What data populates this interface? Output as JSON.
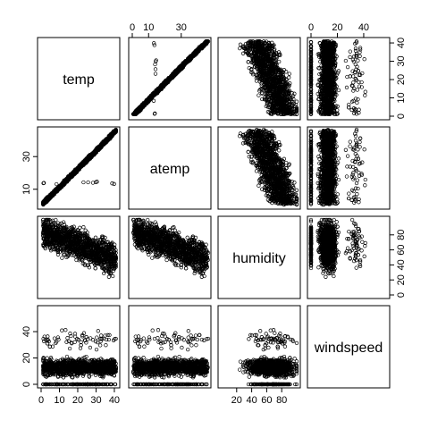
{
  "chart_data": {
    "type": "scatter",
    "title": "",
    "variables": [
      {
        "name": "temp",
        "label": "temp",
        "range": [
          0,
          41
        ],
        "ticks": [
          0,
          10,
          20,
          30,
          40
        ]
      },
      {
        "name": "atemp",
        "label": "atemp",
        "range": [
          0,
          46
        ],
        "ticks": [
          10,
          30
        ]
      },
      {
        "name": "humidity",
        "label": "humidity",
        "range": [
          0,
          100
        ],
        "ticks": [
          0,
          40,
          80
        ]
      },
      {
        "name": "windspeed",
        "label": "windspeed",
        "range": [
          0,
          57
        ],
        "ticks": [
          0,
          20,
          40
        ]
      }
    ],
    "top_axis_ticks": {
      "atemp": [
        "0",
        "10",
        "30"
      ],
      "windspeed": [
        "0",
        "20",
        "40"
      ]
    },
    "bottom_axis_ticks": {
      "temp": [
        "0",
        "10",
        "20",
        "30",
        "40"
      ],
      "humidity": [
        "20",
        "40",
        "60",
        "80"
      ]
    },
    "left_axis_ticks": {
      "atemp": [
        "10",
        "30"
      ],
      "windspeed": [
        "0",
        "20",
        "40"
      ]
    },
    "right_axis_ticks": {
      "temp": [
        "0",
        "10",
        "20",
        "30",
        "40"
      ],
      "humidity": [
        "0",
        "20",
        "40",
        "60",
        "80"
      ]
    },
    "sample_points": [
      {
        "temp": 2,
        "atemp": 3,
        "humidity": 55,
        "windspeed": 10
      },
      {
        "temp": 8,
        "atemp": 10,
        "humidity": 70,
        "windspeed": 15
      },
      {
        "temp": 14,
        "atemp": 17,
        "humidity": 80,
        "windspeed": 8
      },
      {
        "temp": 20,
        "atemp": 24,
        "humidity": 65,
        "windspeed": 20
      },
      {
        "temp": 26,
        "atemp": 30,
        "humidity": 50,
        "windspeed": 12
      },
      {
        "temp": 32,
        "atemp": 37,
        "humidity": 40,
        "windspeed": 25
      },
      {
        "temp": 38,
        "atemp": 43,
        "humidity": 30,
        "windspeed": 30
      }
    ]
  }
}
